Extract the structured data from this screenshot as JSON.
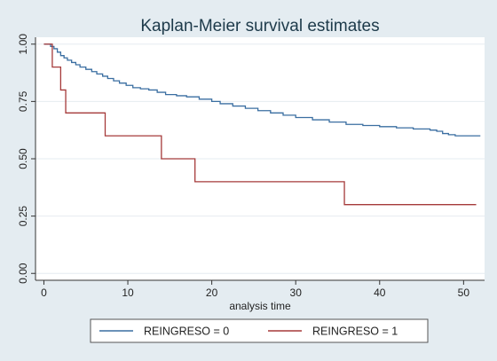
{
  "chart_data": {
    "type": "line",
    "step": true,
    "title": "Kaplan-Meier survival estimates",
    "xlabel": "analysis time",
    "ylabel": "",
    "xlim": [
      -1,
      52.5
    ],
    "ylim": [
      -0.03,
      1.03
    ],
    "xticks": [
      0,
      10,
      20,
      30,
      40,
      50
    ],
    "yticks": [
      0.0,
      0.25,
      0.5,
      0.75,
      1.0
    ],
    "ytick_labels": [
      "0.00",
      "0.25",
      "0.50",
      "0.75",
      "1.00"
    ],
    "grid": "horizontal",
    "legend_position": "bottom",
    "series": [
      {
        "name": "REINGRESO = 0",
        "color": "#3a6ea1",
        "x": [
          0,
          0.8,
          1.2,
          1.6,
          2.0,
          2.4,
          2.8,
          3.3,
          3.8,
          4.3,
          5.0,
          5.7,
          6.3,
          7.0,
          7.6,
          8.3,
          9.0,
          9.8,
          10.6,
          11.5,
          12.5,
          13.5,
          14.5,
          15.8,
          17.0,
          18.5,
          20.0,
          21.0,
          22.5,
          24.0,
          25.5,
          27.0,
          28.5,
          30.0,
          32.0,
          34.0,
          36.0,
          38.0,
          40.0,
          42.0,
          44.0,
          46.0,
          46.8,
          47.5,
          48.2,
          49.0,
          50.0,
          52.0
        ],
        "y": [
          1.0,
          0.99,
          0.98,
          0.965,
          0.95,
          0.94,
          0.93,
          0.92,
          0.91,
          0.9,
          0.89,
          0.88,
          0.87,
          0.86,
          0.85,
          0.84,
          0.83,
          0.82,
          0.81,
          0.805,
          0.8,
          0.79,
          0.78,
          0.775,
          0.77,
          0.76,
          0.75,
          0.74,
          0.73,
          0.72,
          0.71,
          0.7,
          0.69,
          0.68,
          0.67,
          0.66,
          0.65,
          0.645,
          0.64,
          0.635,
          0.63,
          0.625,
          0.62,
          0.61,
          0.605,
          0.6,
          0.6,
          0.6
        ]
      },
      {
        "name": "REINGRESO = 1",
        "color": "#a53a3a",
        "x": [
          0,
          1.0,
          2.0,
          2.6,
          7.3,
          14.0,
          18.0,
          35.8,
          51.5
        ],
        "y": [
          1.0,
          0.9,
          0.8,
          0.7,
          0.6,
          0.5,
          0.4,
          0.3,
          0.3
        ]
      }
    ]
  }
}
